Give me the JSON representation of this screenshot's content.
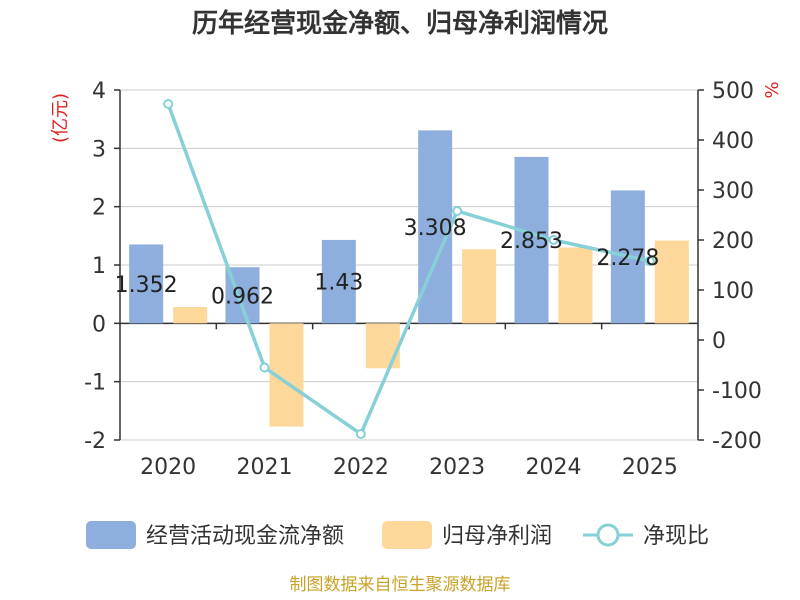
{
  "chart_data": {
    "type": "bar+line",
    "title": "历年经营现金净额、归母净利润情况",
    "categories": [
      "2020",
      "2021",
      "2022",
      "2023",
      "2024",
      "2025"
    ],
    "series": [
      {
        "name": "经营活动现金流净额",
        "type": "bar",
        "axis": "left",
        "color": "#8eaedd",
        "values": [
          1.352,
          0.962,
          1.43,
          3.308,
          2.853,
          2.278
        ],
        "labels": [
          "1.352",
          "0.962",
          "1.43",
          "3.308",
          "2.853",
          "2.278"
        ]
      },
      {
        "name": "归母净利润",
        "type": "bar",
        "axis": "left",
        "color": "#fdd89a",
        "values": [
          0.28,
          -1.77,
          -0.77,
          1.27,
          1.3,
          1.42
        ]
      },
      {
        "name": "净现比",
        "type": "line",
        "axis": "right",
        "color": "#86d0d8",
        "values": [
          472,
          -55,
          -188,
          258,
          200,
          158
        ]
      }
    ],
    "y_left": {
      "label": "(亿元)",
      "ticks": [
        "4",
        "3",
        "2",
        "1",
        "0",
        "-1",
        "-2"
      ],
      "range": [
        -2,
        4
      ]
    },
    "y_right": {
      "label": "%",
      "ticks": [
        "500",
        "400",
        "300",
        "200",
        "100",
        "0",
        "-100",
        "-200"
      ],
      "range": [
        -200,
        500
      ]
    },
    "grid": true,
    "legend_position": "bottom",
    "source": "制图数据来自恒生聚源数据库"
  }
}
